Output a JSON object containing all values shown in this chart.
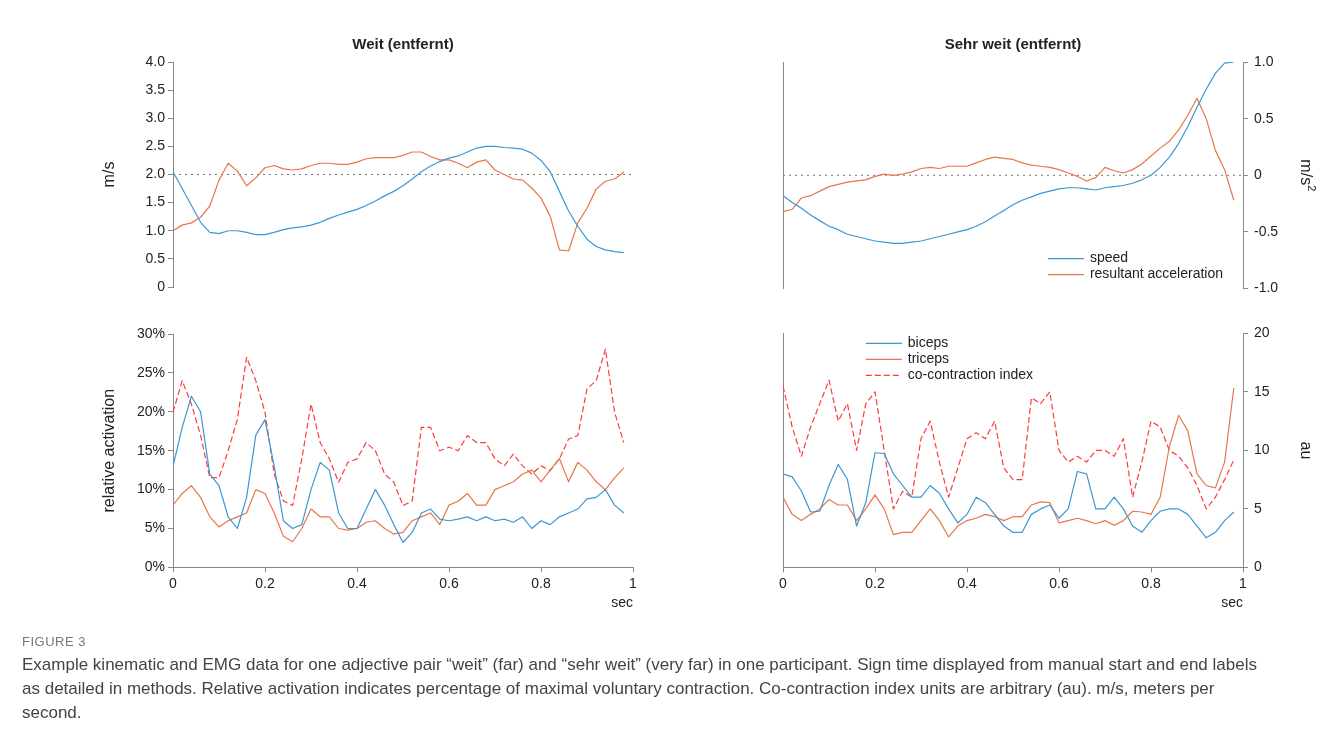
{
  "chart_data": [
    {
      "type": "line",
      "title": "Weit (entfernt)",
      "ylabel": "m/s",
      "xlim": [
        0,
        1
      ],
      "ylim": [
        0,
        4
      ],
      "yticks": [
        0,
        {
          "value": 0.5,
          "label": "0.5"
        },
        {
          "value": 1,
          "label": "1.0"
        },
        {
          "value": 1.5,
          "label": "1.5"
        },
        {
          "value": 2,
          "label": "2.0"
        },
        {
          "value": 2.5,
          "label": "2.5"
        },
        {
          "value": 3,
          "label": "3.0"
        },
        {
          "value": 3.5,
          "label": "3.5"
        },
        {
          "value": 4,
          "label": "4.0"
        }
      ],
      "y2lim": [
        -1,
        1
      ],
      "tick_labels": "y",
      "marker": "none",
      "ref_lines": [
        {
          "axis": "y",
          "value": 2,
          "line_style": "dotted",
          "color": "#777777"
        }
      ],
      "x": [
        0,
        0.02,
        0.04,
        0.06,
        0.08,
        0.1,
        0.12,
        0.14,
        0.16,
        0.18,
        0.2,
        0.22,
        0.24,
        0.26,
        0.28,
        0.3,
        0.32,
        0.34,
        0.36,
        0.38,
        0.4,
        0.42,
        0.44,
        0.46,
        0.48,
        0.5,
        0.52,
        0.54,
        0.56,
        0.58,
        0.6,
        0.62,
        0.64,
        0.66,
        0.68,
        0.7,
        0.72,
        0.74,
        0.76,
        0.78,
        0.8,
        0.82,
        0.84,
        0.86,
        0.88,
        0.9,
        0.92,
        0.94,
        0.96,
        0.98
      ],
      "series": [
        {
          "color": "#3d97d3",
          "values": [
            2.05,
            1.75,
            1.45,
            1.15,
            0.97,
            0.95,
            1.0,
            1.0,
            0.97,
            0.93,
            0.93,
            0.97,
            1.02,
            1.05,
            1.07,
            1.1,
            1.15,
            1.22,
            1.28,
            1.33,
            1.38,
            1.45,
            1.53,
            1.62,
            1.7,
            1.8,
            1.92,
            2.05,
            2.15,
            2.23,
            2.29,
            2.33,
            2.4,
            2.47,
            2.5,
            2.5,
            2.48,
            2.47,
            2.45,
            2.38,
            2.25,
            2.05,
            1.7,
            1.35,
            1.08,
            0.85,
            0.72,
            0.66,
            0.63,
            0.61
          ]
        },
        {
          "color": "#e8764a",
          "axis": "y2",
          "values": [
            -0.5,
            -0.45,
            -0.43,
            -0.38,
            -0.28,
            -0.05,
            0.1,
            0.03,
            -0.1,
            -0.03,
            0.06,
            0.08,
            0.05,
            0.04,
            0.05,
            0.08,
            0.1,
            0.1,
            0.09,
            0.09,
            0.11,
            0.14,
            0.15,
            0.15,
            0.15,
            0.17,
            0.2,
            0.2,
            0.16,
            0.13,
            0.13,
            0.1,
            0.06,
            0.11,
            0.13,
            0.04,
            0,
            -0.04,
            -0.05,
            -0.12,
            -0.21,
            -0.37,
            -0.67,
            -0.68,
            -0.43,
            -0.3,
            -0.13,
            -0.06,
            -0.04,
            0.02
          ]
        }
      ],
      "annotations": [
        "FIGURE 3",
        "Example kinematic and EMG data for one adjective pair “weit” (far) and “sehr weit” (very far) in one participant. Sign time displayed from manual start and end labels as detailed in methods. Relative activation indicates percentage of maximal voluntary contraction. Co-contraction index units are arbitrary (au). m/s, meters per second."
      ]
    },
    {
      "type": "line",
      "title": "Sehr weit (entfernt)",
      "y2label": "m/s$^{2}$",
      "xlim": [
        0,
        1
      ],
      "ylim": [
        0,
        4
      ],
      "y2lim": [
        -1,
        1
      ],
      "y2ticks": [
        {
          "value": -1,
          "label": "-1.0"
        },
        {
          "value": -0.5,
          "label": "-0.5"
        },
        0,
        {
          "value": 0.5,
          "label": "0.5"
        },
        {
          "value": 1,
          "label": "1.0"
        }
      ],
      "tick_labels": "y2",
      "marker": "none",
      "legend": "bottom right",
      "ref_lines": [
        {
          "axis": "y2",
          "value": 0,
          "line_style": "dotted",
          "color": "#777777"
        }
      ],
      "x": [
        0,
        0.02,
        0.04,
        0.06,
        0.08,
        0.1,
        0.12,
        0.14,
        0.16,
        0.18,
        0.2,
        0.22,
        0.24,
        0.26,
        0.28,
        0.3,
        0.32,
        0.34,
        0.36,
        0.38,
        0.4,
        0.42,
        0.44,
        0.46,
        0.48,
        0.5,
        0.52,
        0.54,
        0.56,
        0.58,
        0.6,
        0.62,
        0.64,
        0.66,
        0.68,
        0.7,
        0.72,
        0.74,
        0.76,
        0.78,
        0.8,
        0.82,
        0.84,
        0.86,
        0.88,
        0.9,
        0.92,
        0.94,
        0.96,
        0.98
      ],
      "series": [
        {
          "name": "speed",
          "color": "#3d97d3",
          "values": [
            1.64,
            1.52,
            1.42,
            1.3,
            1.2,
            1.1,
            1.04,
            0.96,
            0.92,
            0.88,
            0.84,
            0.82,
            0.8,
            0.8,
            0.82,
            0.84,
            0.88,
            0.92,
            0.96,
            1.0,
            1.04,
            1.1,
            1.18,
            1.28,
            1.38,
            1.48,
            1.56,
            1.62,
            1.68,
            1.72,
            1.76,
            1.78,
            1.78,
            1.76,
            1.74,
            1.78,
            1.8,
            1.82,
            1.86,
            1.92,
            2.0,
            2.14,
            2.32,
            2.56,
            2.86,
            3.2,
            3.52,
            3.8,
            3.98,
            4.0
          ]
        },
        {
          "name": "resultant acceleration",
          "color": "#e8764a",
          "axis": "y2",
          "values": [
            -0.32,
            -0.3,
            -0.2,
            -0.18,
            -0.14,
            -0.1,
            -0.08,
            -0.06,
            -0.05,
            -0.04,
            -0.01,
            0.01,
            0,
            0.01,
            0.03,
            0.06,
            0.07,
            0.06,
            0.08,
            0.08,
            0.08,
            0.11,
            0.14,
            0.16,
            0.15,
            0.14,
            0.11,
            0.09,
            0.08,
            0.07,
            0.05,
            0.02,
            -0.01,
            -0.05,
            -0.02,
            0.07,
            0.04,
            0.02,
            0.05,
            0.1,
            0.17,
            0.24,
            0.3,
            0.4,
            0.53,
            0.68,
            0.5,
            0.22,
            0.05,
            -0.22
          ]
        }
      ]
    },
    {
      "type": "line",
      "ylabel": "relative activation",
      "xlabel": "sec",
      "xlim": [
        0,
        1
      ],
      "xticks": [
        0,
        0.2,
        0.4,
        0.6,
        0.8,
        1
      ],
      "ylim": [
        0,
        30
      ],
      "yticks": [
        {
          "value": 0,
          "label": "0%"
        },
        {
          "value": 5,
          "label": "5%"
        },
        {
          "value": 10,
          "label": "10%"
        },
        {
          "value": 15,
          "label": "15%"
        },
        {
          "value": 20,
          "label": "20%"
        },
        {
          "value": 25,
          "label": "25%"
        },
        {
          "value": 30,
          "label": "30%"
        }
      ],
      "y2lim": [
        0,
        20
      ],
      "tick_labels": "xy",
      "marker": "none",
      "x": [
        0,
        0.02,
        0.04,
        0.06,
        0.08,
        0.1,
        0.12,
        0.14,
        0.16,
        0.18,
        0.2,
        0.22,
        0.24,
        0.26,
        0.28,
        0.3,
        0.32,
        0.34,
        0.36,
        0.38,
        0.4,
        0.42,
        0.44,
        0.46,
        0.48,
        0.5,
        0.52,
        0.54,
        0.56,
        0.58,
        0.6,
        0.62,
        0.64,
        0.66,
        0.68,
        0.7,
        0.72,
        0.74,
        0.76,
        0.78,
        0.8,
        0.82,
        0.84,
        0.86,
        0.88,
        0.9,
        0.92,
        0.94,
        0.96,
        0.98
      ],
      "series": [
        {
          "color": "#3d97d3",
          "values": [
            13,
            18,
            22,
            20,
            12,
            10.5,
            6.5,
            5,
            9,
            17,
            19,
            13,
            6,
            5,
            5.5,
            10,
            13.5,
            12.5,
            7,
            5,
            5,
            7.5,
            10,
            8,
            5.5,
            3.2,
            4.5,
            7,
            7.5,
            6.2,
            6,
            6.2,
            6.5,
            6,
            6.5,
            6,
            6.2,
            5.8,
            6.5,
            5,
            6,
            5.5,
            6.5,
            7,
            7.5,
            8.8,
            9,
            10,
            8,
            7
          ]
        },
        {
          "color": "#e8764a",
          "values": [
            8,
            9.5,
            10.5,
            9,
            6.5,
            5.2,
            6,
            6.5,
            7,
            10,
            9.5,
            7,
            4,
            3.3,
            5,
            7.5,
            6.5,
            6.5,
            5,
            4.8,
            5,
            5.8,
            6,
            5,
            4.3,
            4.5,
            6,
            6.5,
            7,
            5.5,
            8,
            8.5,
            9.5,
            8,
            8,
            10,
            10.5,
            11,
            12,
            12.5,
            11,
            12.5,
            14,
            11,
            13.5,
            12.5,
            11,
            10,
            11.5,
            12.8
          ]
        },
        {
          "color": "#ff3b3b",
          "axis": "y2",
          "line_style": "dashed",
          "values": [
            13.3,
            16,
            14,
            11.3,
            7.7,
            7.7,
            10,
            12.7,
            18,
            16,
            13.3,
            8,
            5.7,
            5.3,
            9.3,
            14,
            10.7,
            9.3,
            7.3,
            9,
            9.3,
            10.7,
            10,
            8,
            7.3,
            5.3,
            5.7,
            12,
            12,
            10,
            10.3,
            10,
            11.3,
            10.7,
            10.7,
            9.3,
            8.7,
            9.7,
            8.7,
            8,
            8.7,
            8.3,
            9.3,
            11,
            11.3,
            15.3,
            16,
            18.7,
            13.3,
            10.7
          ]
        }
      ]
    },
    {
      "type": "line",
      "xlabel": "sec",
      "y2label": "au",
      "xlim": [
        0,
        1
      ],
      "xticks": [
        0,
        0.2,
        0.4,
        0.6,
        0.8,
        1
      ],
      "ylim": [
        0,
        30
      ],
      "y2lim": [
        0,
        20
      ],
      "y2ticks": [
        0,
        5,
        10,
        15,
        20
      ],
      "tick_labels": "xy2",
      "marker": "none",
      "legend": "top",
      "x": [
        0,
        0.02,
        0.04,
        0.06,
        0.08,
        0.1,
        0.12,
        0.14,
        0.16,
        0.18,
        0.2,
        0.22,
        0.24,
        0.26,
        0.28,
        0.3,
        0.32,
        0.34,
        0.36,
        0.38,
        0.4,
        0.42,
        0.44,
        0.46,
        0.48,
        0.5,
        0.52,
        0.54,
        0.56,
        0.58,
        0.6,
        0.62,
        0.64,
        0.66,
        0.68,
        0.7,
        0.72,
        0.74,
        0.76,
        0.78,
        0.8,
        0.82,
        0.84,
        0.86,
        0.88,
        0.9,
        0.92,
        0.94,
        0.96,
        0.98
      ],
      "series": [
        {
          "name": "biceps",
          "color": "#3d97d3",
          "values": [
            12,
            11.6,
            9.8,
            7.1,
            7.2,
            10.5,
            13.2,
            11.3,
            5.3,
            8.3,
            14.7,
            14.6,
            12,
            10.5,
            9,
            9,
            10.5,
            9.5,
            7.5,
            5.7,
            6.8,
            9,
            8.3,
            6.8,
            5.3,
            4.5,
            4.5,
            6.8,
            7.5,
            8,
            6.3,
            7.5,
            12.3,
            12,
            7.5,
            7.5,
            9,
            7.5,
            5.3,
            4.5,
            6,
            7.2,
            7.5,
            7.5,
            6.8,
            5.3,
            3.8,
            4.5,
            6,
            7.1
          ]
        },
        {
          "name": "triceps",
          "color": "#e8764a",
          "values": [
            9,
            6.8,
            6,
            6.8,
            7.5,
            8.7,
            8,
            8,
            6,
            7.5,
            9.3,
            7.5,
            4.2,
            4.5,
            4.5,
            6,
            7.5,
            6,
            3.9,
            5.3,
            6,
            6.3,
            6.8,
            6.5,
            6,
            6.5,
            6.5,
            8,
            8.4,
            8.3,
            5.7,
            6,
            6.3,
            6,
            5.6,
            6,
            5.4,
            6,
            7.2,
            7.1,
            6.8,
            9,
            15.5,
            19.5,
            17.5,
            12,
            10.5,
            10.2,
            13.5,
            23
          ]
        },
        {
          "name": "co-contraction index",
          "color": "#ff3b3b",
          "axis": "y2",
          "line_style": "dashed",
          "values": [
            15.5,
            12,
            9.5,
            12,
            14,
            16,
            12.5,
            14,
            10,
            14,
            15,
            10,
            5,
            6.5,
            6,
            11,
            12.5,
            9,
            6,
            8.5,
            11,
            11.5,
            11,
            12.5,
            8.5,
            7.5,
            7.5,
            14.5,
            14,
            15,
            10,
            9,
            9.5,
            9,
            10,
            10,
            9.5,
            11,
            6,
            9,
            12.5,
            12,
            10,
            9.5,
            8.5,
            7,
            5,
            6,
            7.5,
            9.2
          ]
        }
      ]
    }
  ]
}
